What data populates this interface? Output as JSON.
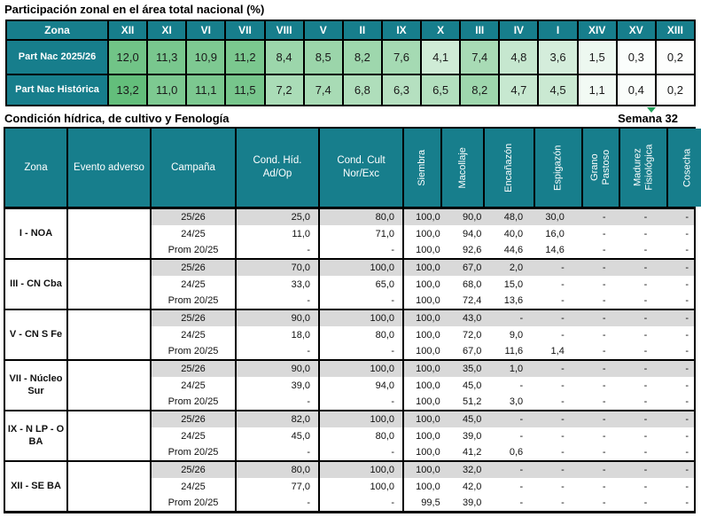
{
  "colors": {
    "header_teal": "#177E8C",
    "row_shade": "#D9D9D9",
    "heat_max_green": "#63BE7B",
    "accent_green_mark": "#21A05A"
  },
  "table1": {
    "title": "Participación zonal en el área total nacional (%)",
    "zona_label": "Zona",
    "columns": [
      "XII",
      "XI",
      "VI",
      "VII",
      "VIII",
      "V",
      "II",
      "IX",
      "X",
      "III",
      "IV",
      "I",
      "XIV",
      "XV",
      "XIII"
    ],
    "rows": [
      {
        "label": "Part Nac 2025/26",
        "values": [
          "12,0",
          "11,3",
          "10,9",
          "11,2",
          "8,4",
          "8,5",
          "8,2",
          "7,6",
          "4,1",
          "7,4",
          "4,8",
          "3,6",
          "1,5",
          "0,3",
          "0,2"
        ]
      },
      {
        "label": "Part Nac Histórica",
        "values": [
          "13,2",
          "11,0",
          "11,1",
          "11,5",
          "7,2",
          "7,4",
          "6,8",
          "6,3",
          "6,5",
          "8,2",
          "4,7",
          "4,5",
          "1,1",
          "0,4",
          "0,2"
        ]
      }
    ],
    "heat_scale": {
      "min_color": "#FFFFFF",
      "max_color": "#63BE7B",
      "max_value": 13.2
    }
  },
  "table2": {
    "title": "Condición hídrica, de cultivo y Fenología",
    "week_label": "Semana 32",
    "headers": [
      "Zona",
      "Evento adverso",
      "Campaña",
      "Cond. Híd. Ad/Op",
      "Cond. Cult Nor/Exc"
    ],
    "vertical_headers": [
      [
        "Siembra"
      ],
      [
        "Macollaje"
      ],
      [
        "Encañazón"
      ],
      [
        "Espigazón"
      ],
      [
        "Grano",
        "Pastoso"
      ],
      [
        "Madurez",
        "Fisiológica"
      ],
      [
        "Cosecha"
      ]
    ],
    "groups": [
      {
        "zone": "I - NOA",
        "evento": "",
        "rows": [
          {
            "campana": "25/26",
            "values": [
              "25,0",
              "80,0",
              "100,0",
              "90,0",
              "48,0",
              "30,0",
              "-",
              "-",
              "-"
            ]
          },
          {
            "campana": "24/25",
            "values": [
              "11,0",
              "71,0",
              "100,0",
              "94,0",
              "40,0",
              "16,0",
              "-",
              "-",
              "-"
            ]
          },
          {
            "campana": "Prom 20/25",
            "values": [
              "-",
              "-",
              "100,0",
              "92,6",
              "44,6",
              "14,6",
              "-",
              "-",
              "-"
            ]
          }
        ]
      },
      {
        "zone": "III - CN Cba",
        "evento": "",
        "rows": [
          {
            "campana": "25/26",
            "values": [
              "70,0",
              "100,0",
              "100,0",
              "67,0",
              "2,0",
              "-",
              "-",
              "-",
              "-"
            ]
          },
          {
            "campana": "24/25",
            "values": [
              "33,0",
              "65,0",
              "100,0",
              "68,0",
              "15,0",
              "-",
              "-",
              "-",
              "-"
            ]
          },
          {
            "campana": "Prom 20/25",
            "values": [
              "-",
              "-",
              "100,0",
              "72,4",
              "13,6",
              "-",
              "-",
              "-",
              "-"
            ]
          }
        ]
      },
      {
        "zone": "V - CN S Fe",
        "evento": "",
        "rows": [
          {
            "campana": "25/26",
            "values": [
              "90,0",
              "100,0",
              "100,0",
              "43,0",
              "-",
              "-",
              "-",
              "-",
              "-"
            ]
          },
          {
            "campana": "24/25",
            "values": [
              "18,0",
              "80,0",
              "100,0",
              "72,0",
              "9,0",
              "-",
              "-",
              "-",
              "-"
            ]
          },
          {
            "campana": "Prom 20/25",
            "values": [
              "-",
              "-",
              "100,0",
              "67,0",
              "11,6",
              "1,4",
              "-",
              "-",
              "-"
            ]
          }
        ]
      },
      {
        "zone": "VII - Núcleo Sur",
        "evento": "",
        "rows": [
          {
            "campana": "25/26",
            "values": [
              "90,0",
              "100,0",
              "100,0",
              "35,0",
              "1,0",
              "-",
              "-",
              "-",
              "-"
            ]
          },
          {
            "campana": "24/25",
            "values": [
              "39,0",
              "94,0",
              "100,0",
              "45,0",
              "-",
              "-",
              "-",
              "-",
              "-"
            ]
          },
          {
            "campana": "Prom 20/25",
            "values": [
              "-",
              "-",
              "100,0",
              "51,2",
              "3,0",
              "-",
              "-",
              "-",
              "-"
            ]
          }
        ]
      },
      {
        "zone": "IX - N LP - O BA",
        "evento": "",
        "rows": [
          {
            "campana": "25/26",
            "values": [
              "82,0",
              "100,0",
              "100,0",
              "45,0",
              "-",
              "-",
              "-",
              "-",
              "-"
            ]
          },
          {
            "campana": "24/25",
            "values": [
              "45,0",
              "80,0",
              "100,0",
              "39,0",
              "-",
              "-",
              "-",
              "-",
              "-"
            ]
          },
          {
            "campana": "Prom 20/25",
            "values": [
              "-",
              "-",
              "100,0",
              "41,2",
              "0,6",
              "-",
              "-",
              "-",
              "-"
            ]
          }
        ]
      },
      {
        "zone": "XII - SE BA",
        "evento": "",
        "rows": [
          {
            "campana": "25/26",
            "values": [
              "80,0",
              "100,0",
              "100,0",
              "32,0",
              "-",
              "-",
              "-",
              "-",
              "-"
            ]
          },
          {
            "campana": "24/25",
            "values": [
              "77,0",
              "100,0",
              "100,0",
              "42,0",
              "-",
              "-",
              "-",
              "-",
              "-"
            ]
          },
          {
            "campana": "Prom 20/25",
            "values": [
              "-",
              "-",
              "99,5",
              "39,0",
              "-",
              "-",
              "-",
              "-",
              "-"
            ]
          }
        ]
      }
    ]
  }
}
